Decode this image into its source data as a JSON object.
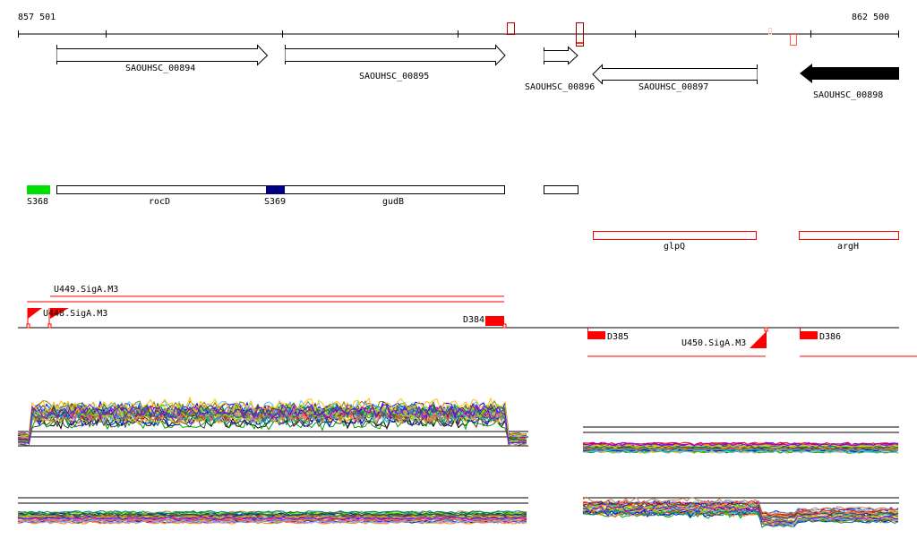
{
  "coordinates": {
    "start": "857 501",
    "end": "862 500"
  },
  "genes": [
    {
      "label": "SAOUHSC_00894",
      "strand": "+"
    },
    {
      "label": "SAOUHSC_00895",
      "strand": "+"
    },
    {
      "label": "SAOUHSC_00896",
      "strand": "+"
    },
    {
      "label": "SAOUHSC_00897",
      "strand": "-"
    },
    {
      "label": "SAOUHSC_00898",
      "strand": "-",
      "selected": true
    }
  ],
  "features": [
    {
      "label": "S368",
      "color": "#00e000"
    },
    {
      "label": "rocD"
    },
    {
      "label": "S369",
      "color": "#000080"
    },
    {
      "label": "gudB"
    },
    {
      "label": "glpQ",
      "color": "#ff0000"
    },
    {
      "label": "argH",
      "color": "#ff0000"
    }
  ],
  "transcripts": [
    {
      "label": "U448.SigA.M3"
    },
    {
      "label": "U449.SigA.M3"
    },
    {
      "label": "D384"
    },
    {
      "label": "D385"
    },
    {
      "label": "U450.SigA.M3"
    },
    {
      "label": "D386"
    }
  ],
  "colors": {
    "accent": "#ff0000"
  }
}
